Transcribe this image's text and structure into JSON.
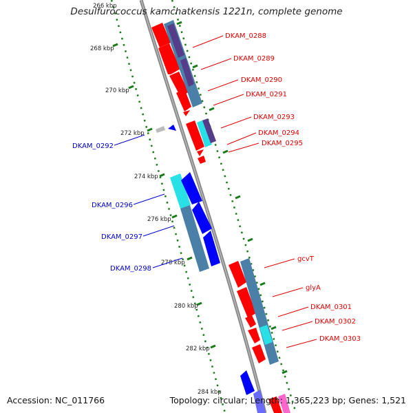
{
  "title": "Desulfurococcus kamchatkensis 1221n, complete genome",
  "accession_line": "Accession: NC_011766",
  "stats_line": "Topology: circular; Length: 1,365,223 bp; Genes: 1,521",
  "colors": {
    "forward_strand": "#ff0000",
    "reverse_strand": "#0000ff",
    "cog_steelblue": "#4a7fa8",
    "cog_cyan": "#29e0e6",
    "cog_purple": "#553d8a",
    "backbone": "#888888",
    "gc_dots": "#1a7a1a",
    "red_label": "#e00000",
    "blue_label": "#0000cc"
  },
  "kbp_ticks": [
    "266 kbp",
    "268 kbp",
    "270 kbp",
    "272 kbp",
    "274 kbp",
    "276 kbp",
    "278 kbp",
    "280 kbp",
    "282 kbp",
    "284 kbp"
  ],
  "forward_genes": [
    "DKAM_0288",
    "DKAM_0289",
    "DKAM_0290",
    "DKAM_0291",
    "DKAM_0293",
    "DKAM_0294",
    "DKAM_0295",
    "gcvT",
    "glyA",
    "DKAM_0301",
    "DKAM_0302",
    "DKAM_0303"
  ],
  "reverse_genes": [
    "DKAM_0292",
    "DKAM_0296",
    "DKAM_0297",
    "DKAM_0298"
  ]
}
